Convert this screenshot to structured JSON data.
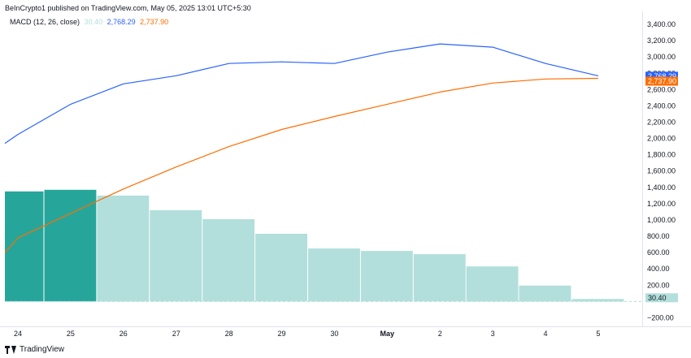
{
  "header": {
    "published_by": "BeInCrypto1 published on TradingView.com, May 05, 2025 13:01 UTC+5:30"
  },
  "legend": {
    "indicator": "MACD (12, 26, close)",
    "histogram_value": "30.40",
    "macd_value": "2,768.29",
    "signal_value": "2,737.90"
  },
  "footer": {
    "brand": "TradingView"
  },
  "colors": {
    "macd_line": "#2962ff",
    "signal_line": "#ff6d00",
    "hist_growing": "#26a69a",
    "hist_falling": "#b2dfdb",
    "macd_badge": "#2962ff",
    "signal_badge": "#ff6d00",
    "hist_badge": "#b2dfdb"
  },
  "chart_data": {
    "type": "line",
    "x_labels": [
      "24",
      "25",
      "26",
      "27",
      "28",
      "29",
      "30",
      "May",
      "2",
      "3",
      "4",
      "5"
    ],
    "y_ticks": [
      "3,400.00",
      "3,200.00",
      "3,000.00",
      "2,800.00",
      "2,600.00",
      "2,400.00",
      "2,200.00",
      "2,000.00",
      "1,800.00",
      "1,600.00",
      "1,400.00",
      "1,200.00",
      "1,000.00",
      "800.00",
      "600.00",
      "400.00",
      "200.00",
      "−200.00"
    ],
    "ylim": [
      -200,
      3400
    ],
    "series": [
      {
        "name": "MACD",
        "type": "line",
        "x": [
          "23.5",
          "24",
          "25",
          "26",
          "27",
          "28",
          "29",
          "30",
          "May",
          "2",
          "3",
          "4",
          "5"
        ],
        "values": [
          1940,
          2050,
          2420,
          2670,
          2770,
          2920,
          2940,
          2920,
          3060,
          3160,
          3120,
          2920,
          2768.29
        ]
      },
      {
        "name": "Signal",
        "type": "line",
        "x": [
          "23.5",
          "24",
          "25",
          "26",
          "27",
          "28",
          "29",
          "30",
          "May",
          "2",
          "3",
          "4",
          "5"
        ],
        "values": [
          600,
          780,
          1080,
          1380,
          1650,
          1900,
          2110,
          2270,
          2420,
          2570,
          2680,
          2730,
          2737.9
        ]
      },
      {
        "name": "Histogram",
        "type": "bar",
        "x": [
          "24",
          "25",
          "26",
          "27",
          "28",
          "29",
          "30",
          "May",
          "2",
          "3",
          "4",
          "5"
        ],
        "values": [
          1350,
          1370,
          1300,
          1120,
          1010,
          830,
          650,
          620,
          580,
          430,
          195,
          30.4
        ],
        "growing": [
          true,
          true,
          false,
          false,
          false,
          false,
          false,
          false,
          false,
          false,
          false,
          false
        ]
      }
    ],
    "badges": [
      "2,768.29",
      "2,737.90",
      "30.40"
    ]
  }
}
